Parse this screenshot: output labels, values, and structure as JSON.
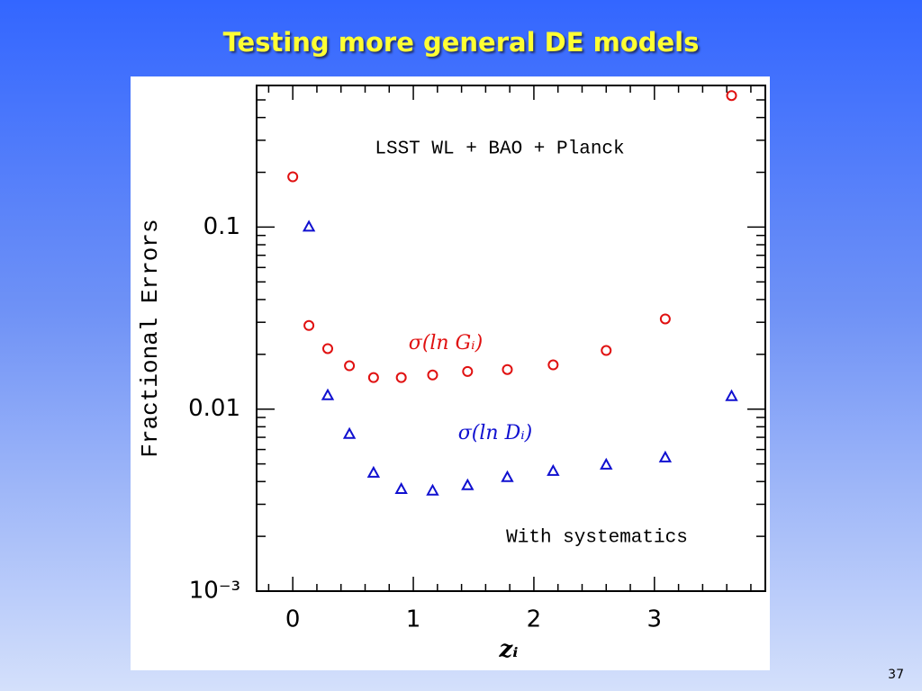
{
  "slide": {
    "title": "Testing more general DE models",
    "page_number": "37"
  },
  "chart_data": {
    "type": "scatter",
    "x_label": "zᵢ",
    "y_label": "Fractional Errors",
    "annotations": [
      "LSST WL + BAO + Planck",
      "With systematics"
    ],
    "xlim": [
      -0.3,
      3.92
    ],
    "xticks": [
      0,
      1,
      2,
      3
    ],
    "x_minor_ticks": [
      -0.2,
      0.2,
      0.4,
      0.6,
      0.8,
      1.2,
      1.4,
      1.6,
      1.8,
      2.2,
      2.4,
      2.6,
      2.8,
      3.2,
      3.4,
      3.6,
      3.8
    ],
    "ylim": [
      0.001,
      0.6
    ],
    "y_log": true,
    "yticks": [
      {
        "value": 0.001,
        "label": "10⁻³"
      },
      0.01,
      0.1
    ],
    "y_minor_ticks": [
      0.002,
      0.003,
      0.004,
      0.005,
      0.006,
      0.007,
      0.008,
      0.009,
      0.02,
      0.03,
      0.04,
      0.05,
      0.06,
      0.07,
      0.08,
      0.09,
      0.2,
      0.3,
      0.4,
      0.5
    ],
    "series": [
      {
        "name": "σ(ln Gᵢ)",
        "color": "#e01010",
        "marker": "circle",
        "x": [
          0,
          0.134,
          0.29,
          0.47,
          0.67,
          0.9,
          1.16,
          1.45,
          1.78,
          2.16,
          2.6,
          3.09,
          3.64
        ],
        "values": [
          0.189,
          0.0288,
          0.0215,
          0.0173,
          0.0149,
          0.0149,
          0.0154,
          0.0161,
          0.0165,
          0.0175,
          0.021,
          0.0313,
          0.528
        ]
      },
      {
        "name": "σ(ln Dᵢ)",
        "color": "#1010d0",
        "marker": "triangle",
        "x": [
          0.134,
          0.29,
          0.47,
          0.67,
          0.9,
          1.16,
          1.45,
          1.78,
          2.16,
          2.6,
          3.09,
          3.64
        ],
        "values": [
          0.1,
          0.01186,
          0.00727,
          0.00445,
          0.00362,
          0.00355,
          0.0038,
          0.00421,
          0.00455,
          0.00493,
          0.0054,
          0.01173
        ]
      }
    ]
  }
}
